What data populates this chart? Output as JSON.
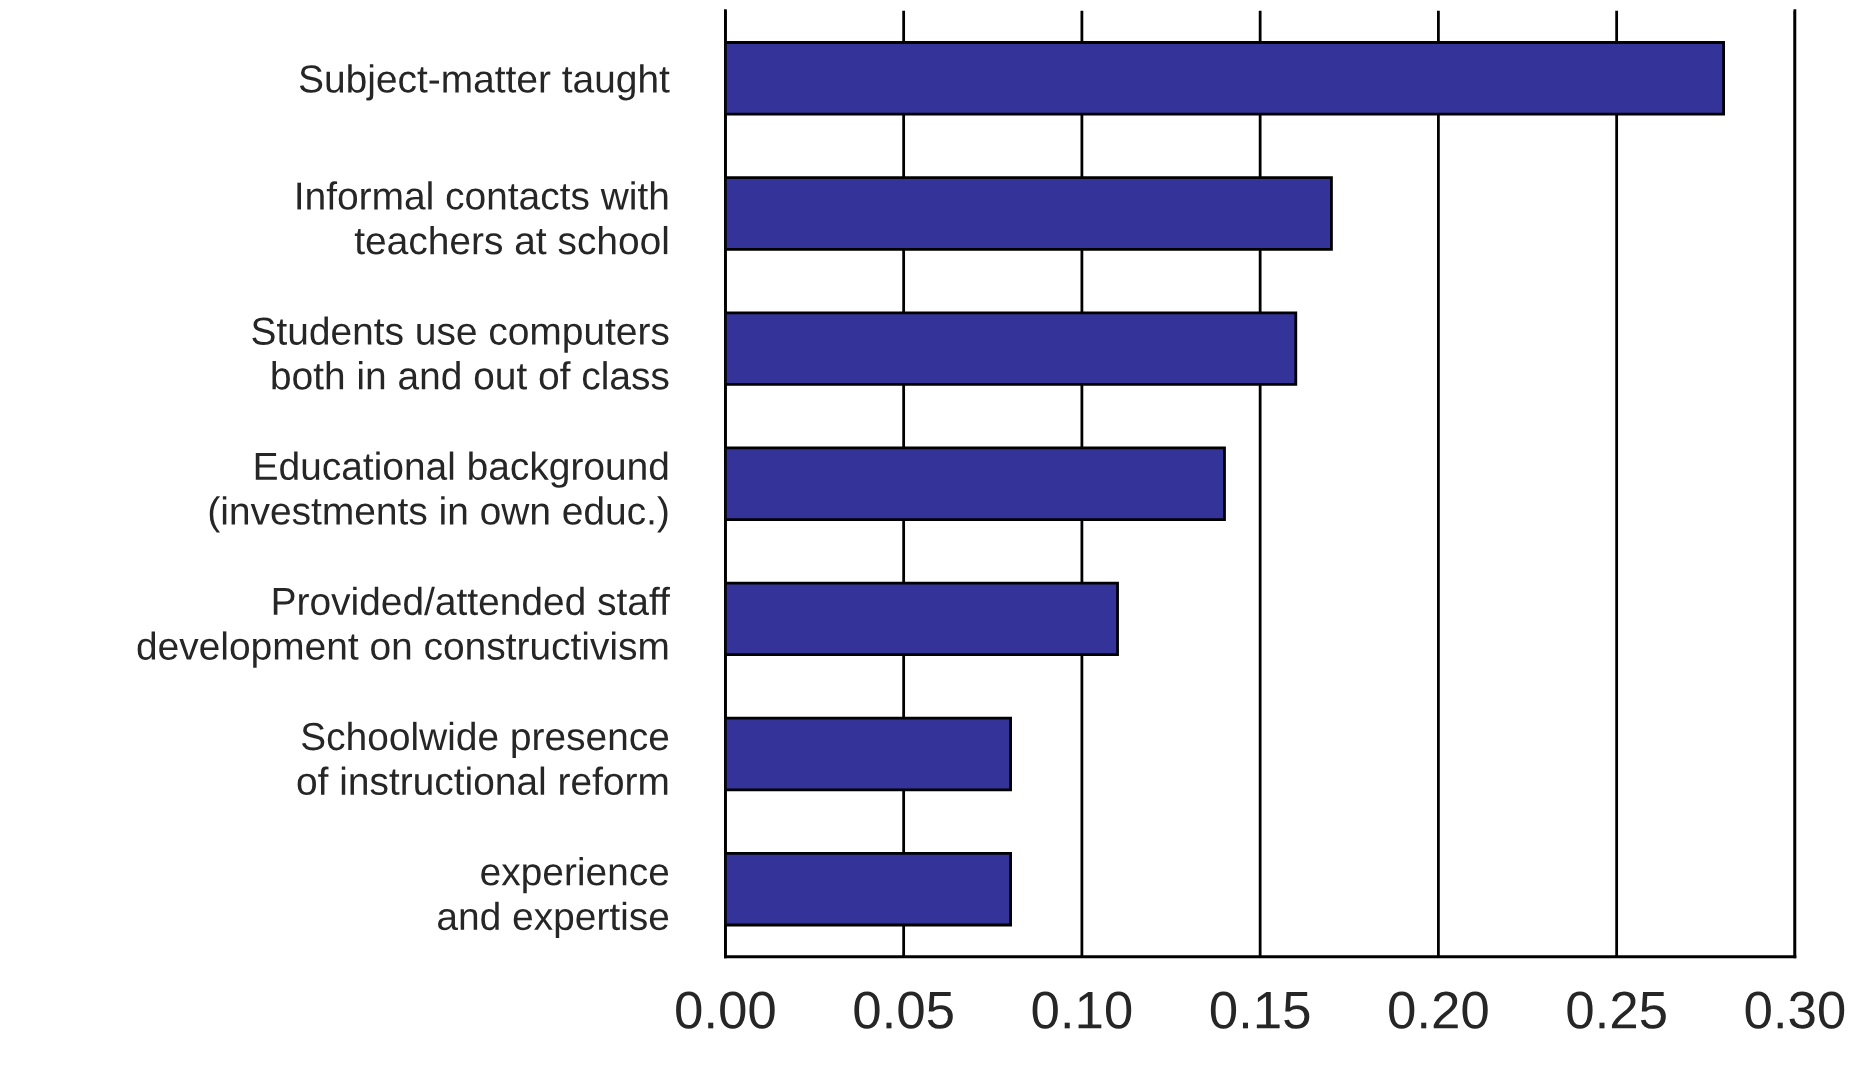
{
  "chart_data": {
    "type": "bar",
    "orientation": "horizontal",
    "categories": [
      "Subject-matter taught",
      "Informal contacts with\nteachers at school",
      "Students use computers\nboth in and out of class",
      "Educational background\n(investments in own educ.)",
      "Provided/attended staff\ndevelopment on constructivism",
      "Schoolwide presence\nof instructional reform",
      "experience\nand expertise"
    ],
    "values": [
      0.28,
      0.17,
      0.16,
      0.14,
      0.11,
      0.08,
      0.08
    ],
    "color": "#333399",
    "xlim": [
      0,
      0.3
    ],
    "xticks": [
      {
        "value": 0,
        "label": "0.00"
      },
      {
        "value": 0.05,
        "label": "0.05"
      },
      {
        "value": 0.1,
        "label": "0.10"
      },
      {
        "value": 0.15,
        "label": "0.15"
      },
      {
        "value": 0.2,
        "label": "0.20"
      },
      {
        "value": 0.25,
        "label": "0.25"
      },
      {
        "value": 0.3,
        "label": "0.30"
      }
    ],
    "grid": "x"
  }
}
